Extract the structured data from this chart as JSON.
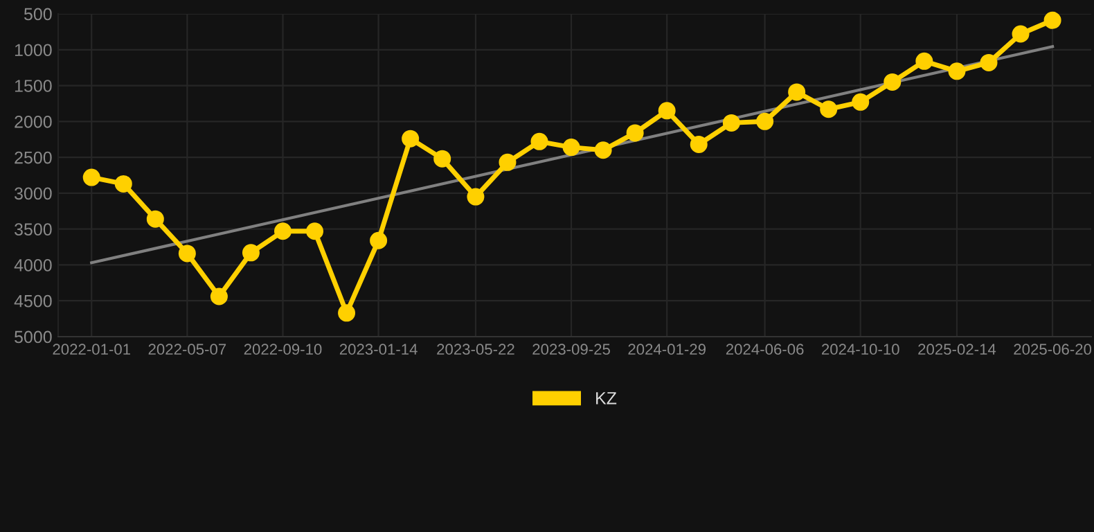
{
  "chart_data": {
    "type": "line",
    "x": [
      "2022-01-01",
      "2022-02-12",
      "2022-03-26",
      "2022-05-07",
      "2022-06-18",
      "2022-07-30",
      "2022-09-10",
      "2022-10-22",
      "2022-12-03",
      "2023-01-14",
      "2023-02-25",
      "2023-04-08",
      "2023-05-22",
      "2023-07-03",
      "2023-08-14",
      "2023-09-25",
      "2023-11-06",
      "2023-12-18",
      "2024-01-29",
      "2024-03-11",
      "2024-04-23",
      "2024-06-06",
      "2024-07-18",
      "2024-08-29",
      "2024-10-10",
      "2024-11-21",
      "2025-01-02",
      "2025-02-14",
      "2025-03-28",
      "2025-05-09",
      "2025-06-20"
    ],
    "series": [
      {
        "name": "KZ",
        "color": "#ffd000",
        "marker": "circle",
        "values": [
          2780,
          2870,
          3360,
          3840,
          4440,
          3830,
          3530,
          3530,
          4670,
          3660,
          2240,
          2520,
          3050,
          2570,
          2280,
          2360,
          2400,
          2160,
          1850,
          2320,
          2020,
          2000,
          1590,
          1830,
          1730,
          1450,
          1160,
          1300,
          1180,
          780,
          590
        ]
      },
      {
        "type": "line",
        "color": "#808080",
        "marker": "none",
        "x": [
          "2022-01-01",
          "2025-06-20"
        ],
        "values": [
          3970,
          955
        ]
      }
    ],
    "ylim": [
      5000,
      500
    ],
    "yticks": [
      500,
      1000,
      1500,
      2000,
      2500,
      3000,
      3500,
      4000,
      4500,
      5000
    ],
    "xlim": [
      "2021-11-18",
      "2025-08-10"
    ],
    "xticks": [
      "2022-01-01",
      "2022-05-07",
      "2022-09-10",
      "2023-01-14",
      "2023-05-22",
      "2023-09-25",
      "2024-01-29",
      "2024-06-06",
      "2024-10-10",
      "2025-02-14",
      "2025-06-20"
    ],
    "grid": true,
    "legend": "bottom"
  }
}
